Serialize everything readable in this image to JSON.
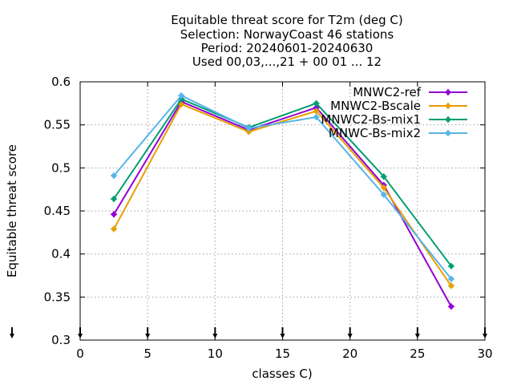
{
  "chart_data": {
    "type": "line",
    "title_lines": [
      "Equitable threat score  for T2m (deg C)",
      "Selection: NorwayCoast     46 stations",
      "Period: 20240601-20240630",
      "Used 00,03,...,21 + 00 01 ... 12"
    ],
    "xlabel": "classes C)",
    "ylabel": "Equitable threat score",
    "xlim": [
      0,
      30
    ],
    "ylim": [
      0.3,
      0.6
    ],
    "x_ticks": [
      0,
      5,
      10,
      15,
      20,
      25,
      30
    ],
    "y_ticks": [
      0.3,
      0.35,
      0.4,
      0.45,
      0.5,
      0.55,
      0.6
    ],
    "x_tick_labels": [
      "0",
      "5",
      "10",
      "15",
      "20",
      "25",
      "30"
    ],
    "y_tick_labels": [
      "0.3",
      "0.35",
      "0.4",
      "0.45",
      "0.5",
      "0.55",
      "0.6"
    ],
    "grid": true,
    "legend_position": "top-right",
    "x": [
      2.5,
      7.5,
      12.5,
      17.5,
      22.5,
      27.5
    ],
    "series": [
      {
        "name": "MNWC2-ref",
        "color": "#9400d3",
        "values": [
          0.446,
          0.577,
          0.544,
          0.57,
          0.48,
          0.339
        ]
      },
      {
        "name": "MNWC2-Bscale",
        "color": "#e69f00",
        "values": [
          0.429,
          0.574,
          0.542,
          0.566,
          0.477,
          0.363
        ]
      },
      {
        "name": "MNWC2-Bs-mix1",
        "color": "#009e73",
        "values": [
          0.464,
          0.58,
          0.547,
          0.575,
          0.49,
          0.386
        ]
      },
      {
        "name": "MNWC-Bs-mix2",
        "color": "#56b4e9",
        "values": [
          0.491,
          0.584,
          0.546,
          0.559,
          0.469,
          0.371
        ]
      }
    ],
    "bottom_markers_x": [
      0,
      5,
      10,
      15,
      20,
      25,
      30
    ]
  }
}
